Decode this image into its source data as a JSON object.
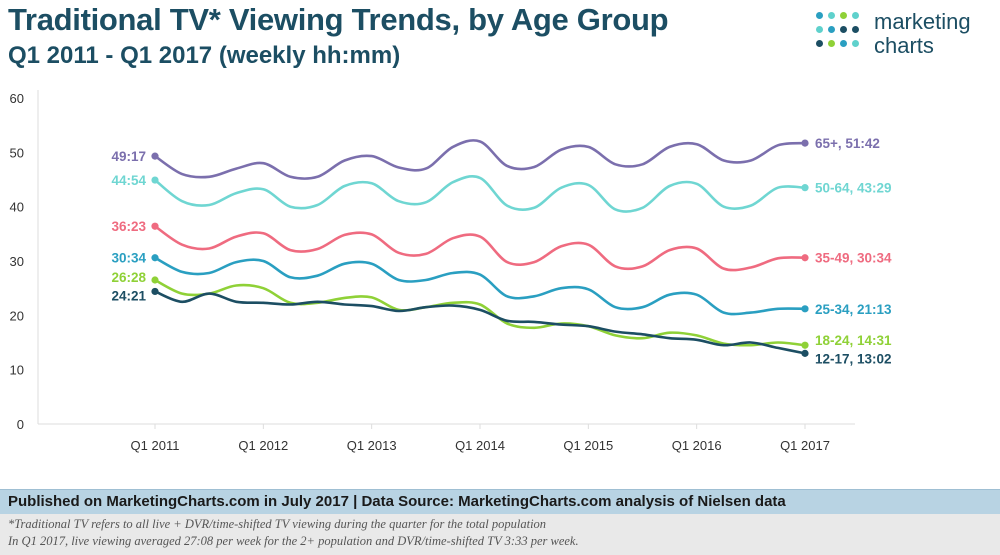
{
  "header": {
    "title": "Traditional TV* Viewing Trends, by Age Group",
    "subtitle": "Q1 2011 - Q1 2017 (weekly hh:mm)"
  },
  "logo": {
    "line1": "marketing",
    "line2": "charts",
    "dot_colors": [
      "#2a9fc1",
      "#5fd1cc",
      "#8fd137",
      "#1c4e63"
    ]
  },
  "footer": {
    "source": "Published on MarketingCharts.com in July 2017 | Data Source: MarketingCharts.com analysis of Nielsen data",
    "note1": "*Traditional TV refers to all live + DVR/time-shifted TV viewing during the quarter for the total population",
    "note2": " In Q1 2017, live viewing averaged 27:08 per week for the 2+ population and DVR/time-shifted TV 3:33 per week."
  },
  "chart_data": {
    "type": "line",
    "title": "Traditional TV* Viewing Trends, by Age Group",
    "subtitle": "Q1 2011 - Q1 2017 (weekly hh:mm)",
    "x_tick_labels": [
      "Q1 2011",
      "Q1 2012",
      "Q1 2013",
      "Q1 2014",
      "Q1 2015",
      "Q1 2016",
      "Q1 2017"
    ],
    "x_ticks_at_quarter_index": [
      0,
      4,
      8,
      12,
      16,
      20,
      24
    ],
    "y_ticks": [
      0,
      10,
      20,
      30,
      40,
      50,
      60
    ],
    "ylim": [
      0,
      60
    ],
    "grid": false,
    "quarters": [
      "Q1 2011",
      "Q2 2011",
      "Q3 2011",
      "Q4 2011",
      "Q1 2012",
      "Q2 2012",
      "Q3 2012",
      "Q4 2012",
      "Q1 2013",
      "Q2 2013",
      "Q3 2013",
      "Q4 2013",
      "Q1 2014",
      "Q2 2014",
      "Q3 2014",
      "Q4 2014",
      "Q1 2015",
      "Q2 2015",
      "Q3 2015",
      "Q4 2015",
      "Q1 2016",
      "Q2 2016",
      "Q3 2016",
      "Q4 2016",
      "Q1 2017"
    ],
    "series": [
      {
        "name": "65+",
        "color": "#7b6fad",
        "start_label": "49:17",
        "end_label": "65+, 51:42",
        "values": [
          49.3,
          46.0,
          45.5,
          47.0,
          48.0,
          45.5,
          45.5,
          48.5,
          49.3,
          47.2,
          47.0,
          51.0,
          52.0,
          47.5,
          47.3,
          50.5,
          51.0,
          47.8,
          47.8,
          51.0,
          51.5,
          48.5,
          48.5,
          51.3,
          51.7
        ]
      },
      {
        "name": "50-64",
        "color": "#6fd6d2",
        "start_label": "44:54",
        "end_label": "50-64, 43:29",
        "values": [
          44.9,
          41.0,
          40.3,
          42.5,
          43.2,
          40.0,
          40.3,
          43.8,
          44.3,
          41.0,
          40.8,
          44.5,
          45.3,
          40.2,
          39.8,
          43.5,
          44.0,
          39.5,
          39.8,
          43.8,
          44.2,
          40.0,
          40.2,
          43.5,
          43.5
        ]
      },
      {
        "name": "35-49",
        "color": "#ef6b80",
        "start_label": "36:23",
        "end_label": "35-49, 30:34",
        "values": [
          36.4,
          33.0,
          32.3,
          34.5,
          35.1,
          32.0,
          32.2,
          34.8,
          34.9,
          31.5,
          31.3,
          34.2,
          34.5,
          29.8,
          29.8,
          32.7,
          33.0,
          29.0,
          29.0,
          32.0,
          32.3,
          28.6,
          28.8,
          30.5,
          30.6
        ]
      },
      {
        "name": "25-34",
        "color": "#2a9fc1",
        "start_label": "30:34",
        "end_label": "25-34, 21:13",
        "values": [
          30.6,
          28.0,
          27.8,
          29.8,
          30.0,
          27.0,
          27.3,
          29.5,
          29.5,
          26.5,
          26.5,
          27.8,
          27.5,
          23.5,
          23.5,
          25.0,
          24.8,
          21.5,
          21.5,
          23.8,
          23.8,
          20.5,
          20.5,
          21.2,
          21.2
        ]
      },
      {
        "name": "18-24",
        "color": "#8fd137",
        "start_label": "26:28",
        "end_label": "18-24, 14:31",
        "values": [
          26.5,
          24.0,
          24.0,
          25.5,
          25.0,
          22.3,
          22.3,
          23.2,
          23.3,
          21.0,
          21.5,
          22.3,
          22.0,
          18.5,
          17.7,
          18.5,
          18.0,
          16.3,
          15.8,
          16.8,
          16.3,
          14.8,
          14.5,
          15.0,
          14.5
        ]
      },
      {
        "name": "12-17",
        "color": "#1c4e63",
        "start_label": "24:21",
        "end_label": "12-17, 13:02",
        "values": [
          24.4,
          22.5,
          24.0,
          22.5,
          22.3,
          22.0,
          22.5,
          22.0,
          21.7,
          20.8,
          21.5,
          21.8,
          21.0,
          19.0,
          18.8,
          18.3,
          18.0,
          17.0,
          16.5,
          15.8,
          15.5,
          14.5,
          15.0,
          14.0,
          13.0
        ]
      }
    ]
  }
}
